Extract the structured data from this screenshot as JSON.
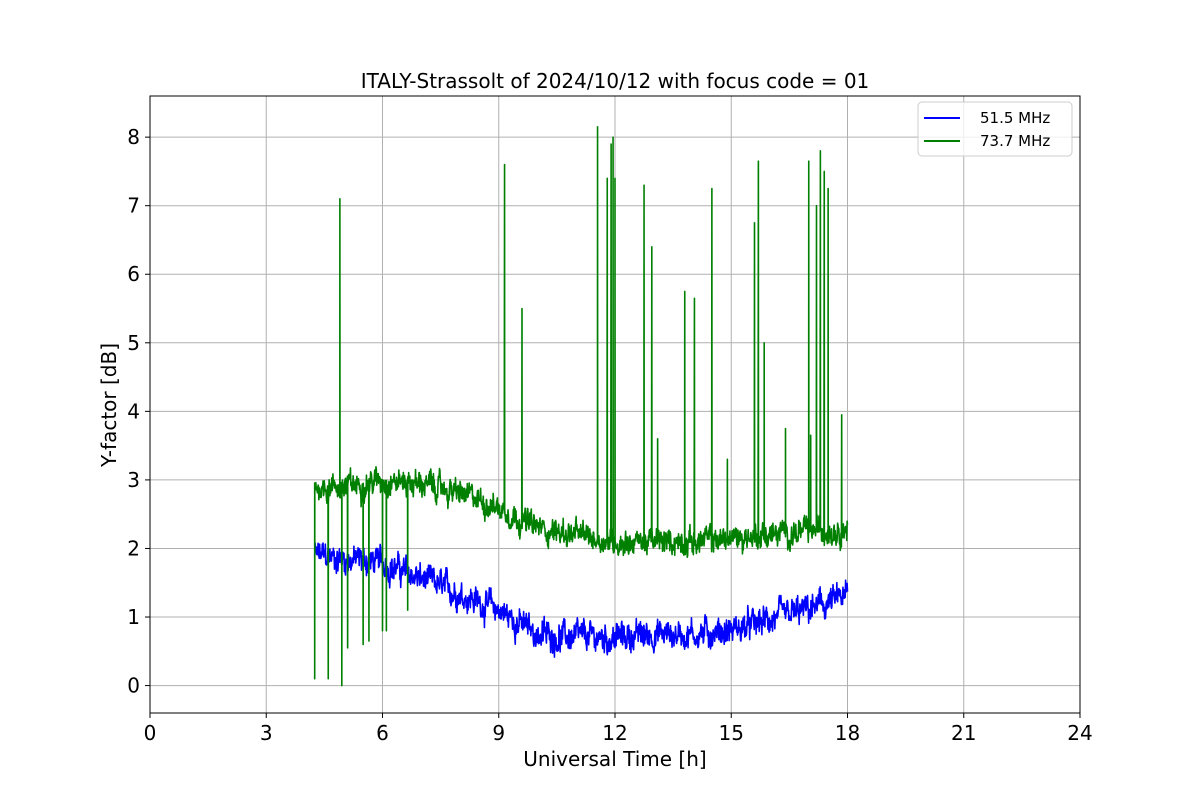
{
  "chart_data": {
    "type": "line",
    "title": "ITALY-Strassolt of 2024/10/12 with focus code = 01",
    "xlabel": "Universal Time [h]",
    "ylabel": "Y-factor [dB]",
    "xlim": [
      0,
      24
    ],
    "ylim": [
      -0.4,
      8.6
    ],
    "xticks": [
      0,
      3,
      6,
      9,
      12,
      15,
      18,
      21,
      24
    ],
    "yticks": [
      0,
      1,
      2,
      3,
      4,
      5,
      6,
      7,
      8
    ],
    "grid": true,
    "legend_position": "top-right",
    "series": [
      {
        "name": "51.5 MHz",
        "color": "#0000ff",
        "x_range": [
          4.25,
          18.0
        ],
        "trend": [
          [
            4.25,
            1.9
          ],
          [
            5.0,
            1.85
          ],
          [
            6.0,
            1.8
          ],
          [
            7.0,
            1.55
          ],
          [
            8.0,
            1.35
          ],
          [
            9.0,
            1.1
          ],
          [
            10.0,
            0.75
          ],
          [
            11.0,
            0.7
          ],
          [
            12.0,
            0.7
          ],
          [
            13.0,
            0.75
          ],
          [
            14.0,
            0.75
          ],
          [
            15.0,
            0.8
          ],
          [
            16.0,
            0.95
          ],
          [
            17.0,
            1.1
          ],
          [
            18.0,
            1.3
          ]
        ],
        "noise_amplitude": 0.28
      },
      {
        "name": "73.7 MHz",
        "color": "#008000",
        "x_range": [
          4.25,
          18.0
        ],
        "trend": [
          [
            4.25,
            2.9
          ],
          [
            5.0,
            2.9
          ],
          [
            6.0,
            3.0
          ],
          [
            7.0,
            2.95
          ],
          [
            8.0,
            2.8
          ],
          [
            9.0,
            2.6
          ],
          [
            10.0,
            2.3
          ],
          [
            11.0,
            2.2
          ],
          [
            12.0,
            2.1
          ],
          [
            13.0,
            2.1
          ],
          [
            14.0,
            2.1
          ],
          [
            15.0,
            2.15
          ],
          [
            16.0,
            2.2
          ],
          [
            17.0,
            2.25
          ],
          [
            18.0,
            2.3
          ]
        ],
        "noise_amplitude": 0.25,
        "spikes": [
          {
            "x": 4.9,
            "y": 7.1
          },
          {
            "x": 9.15,
            "y": 7.6
          },
          {
            "x": 9.6,
            "y": 5.5
          },
          {
            "x": 11.55,
            "y": 8.15
          },
          {
            "x": 11.8,
            "y": 7.4
          },
          {
            "x": 11.9,
            "y": 7.9
          },
          {
            "x": 11.95,
            "y": 8.0
          },
          {
            "x": 12.0,
            "y": 7.4
          },
          {
            "x": 12.75,
            "y": 7.3
          },
          {
            "x": 12.95,
            "y": 6.4
          },
          {
            "x": 13.1,
            "y": 3.6
          },
          {
            "x": 13.8,
            "y": 5.75
          },
          {
            "x": 14.05,
            "y": 5.65
          },
          {
            "x": 14.5,
            "y": 7.25
          },
          {
            "x": 14.9,
            "y": 3.3
          },
          {
            "x": 15.6,
            "y": 6.75
          },
          {
            "x": 15.7,
            "y": 7.65
          },
          {
            "x": 15.85,
            "y": 5.0
          },
          {
            "x": 16.4,
            "y": 3.75
          },
          {
            "x": 17.0,
            "y": 7.65
          },
          {
            "x": 17.05,
            "y": 3.65
          },
          {
            "x": 17.2,
            "y": 7.0
          },
          {
            "x": 17.3,
            "y": 7.8
          },
          {
            "x": 17.4,
            "y": 7.5
          },
          {
            "x": 17.5,
            "y": 7.25
          },
          {
            "x": 17.85,
            "y": 3.95
          }
        ],
        "dips": [
          {
            "x": 4.25,
            "y": 0.1
          },
          {
            "x": 4.6,
            "y": 0.1
          },
          {
            "x": 4.95,
            "y": 0.0
          },
          {
            "x": 5.1,
            "y": 0.55
          },
          {
            "x": 5.5,
            "y": 0.6
          },
          {
            "x": 5.65,
            "y": 0.65
          },
          {
            "x": 6.0,
            "y": 0.8
          },
          {
            "x": 6.1,
            "y": 0.8
          },
          {
            "x": 6.65,
            "y": 1.1
          }
        ]
      }
    ]
  }
}
